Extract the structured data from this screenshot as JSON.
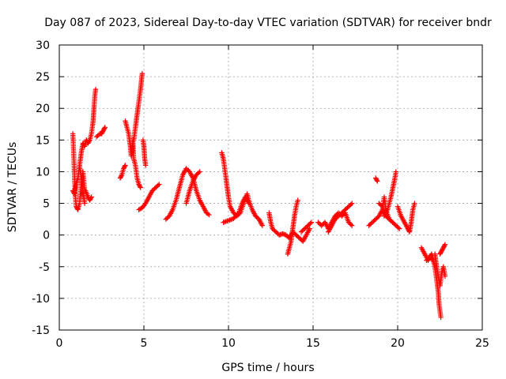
{
  "chart_data": {
    "type": "scatter",
    "title": "Day 087 of 2023, Sidereal Day-to-day VTEC variation (SDTVAR) for receiver bndr",
    "xlabel": "GPS time / hours",
    "ylabel": "SDTVAR / TECUs",
    "xlim": [
      0,
      25
    ],
    "ylim": [
      -15,
      30
    ],
    "xticks": [
      0,
      5,
      10,
      15,
      20,
      25
    ],
    "yticks": [
      -15,
      -10,
      -5,
      0,
      5,
      10,
      15,
      20,
      25,
      30
    ],
    "grid": true,
    "marker": "plus",
    "color": "#ff0000",
    "series": [
      {
        "name": "SDTVAR",
        "segments": [
          [
            [
              0.8,
              16
            ],
            [
              0.85,
              13
            ],
            [
              0.9,
              9
            ],
            [
              0.95,
              6
            ],
            [
              1.0,
              4.5
            ],
            [
              1.1,
              4
            ],
            [
              1.2,
              5
            ],
            [
              1.3,
              8
            ],
            [
              1.4,
              10
            ],
            [
              1.5,
              7
            ]
          ],
          [
            [
              0.8,
              7
            ],
            [
              0.9,
              6.5
            ],
            [
              1.0,
              8
            ],
            [
              1.1,
              9
            ],
            [
              1.2,
              11
            ],
            [
              1.3,
              9
            ],
            [
              1.4,
              7
            ],
            [
              1.5,
              5
            ],
            [
              1.45,
              6
            ]
          ],
          [
            [
              1.2,
              11
            ],
            [
              1.3,
              13
            ],
            [
              1.4,
              14.5
            ],
            [
              1.5,
              14
            ],
            [
              1.6,
              15
            ],
            [
              1.7,
              14.5
            ],
            [
              1.8,
              15
            ],
            [
              1.9,
              16
            ],
            [
              2.0,
              18
            ],
            [
              2.05,
              20
            ],
            [
              2.1,
              22
            ],
            [
              2.15,
              23
            ]
          ],
          [
            [
              1.55,
              7
            ],
            [
              1.7,
              6
            ],
            [
              1.8,
              5.5
            ],
            [
              1.9,
              6
            ]
          ],
          [
            [
              2.2,
              15.5
            ],
            [
              2.4,
              16
            ],
            [
              2.5,
              16
            ],
            [
              2.6,
              16.5
            ],
            [
              2.7,
              17
            ]
          ],
          [
            [
              3.6,
              9
            ],
            [
              3.7,
              9.5
            ],
            [
              3.8,
              10.5
            ],
            [
              3.9,
              11
            ]
          ],
          [
            [
              3.9,
              18
            ],
            [
              4.0,
              17
            ],
            [
              4.1,
              16
            ],
            [
              4.2,
              14
            ],
            [
              4.25,
              12.5
            ],
            [
              4.3,
              13
            ],
            [
              4.35,
              15
            ],
            [
              4.4,
              12
            ],
            [
              4.5,
              11
            ],
            [
              4.6,
              9
            ],
            [
              4.7,
              8
            ],
            [
              4.8,
              7.5
            ]
          ],
          [
            [
              4.4,
              15
            ],
            [
              4.5,
              17
            ],
            [
              4.6,
              19
            ],
            [
              4.7,
              21
            ],
            [
              4.8,
              23
            ],
            [
              4.9,
              25.5
            ]
          ],
          [
            [
              4.95,
              15
            ],
            [
              5.0,
              14
            ],
            [
              5.05,
              12
            ],
            [
              5.1,
              11
            ]
          ],
          [
            [
              4.7,
              4
            ],
            [
              4.9,
              4.3
            ],
            [
              5.1,
              5
            ],
            [
              5.3,
              6
            ],
            [
              5.5,
              7
            ],
            [
              5.7,
              7.5
            ],
            [
              5.9,
              8
            ]
          ],
          [
            [
              6.3,
              2.5
            ],
            [
              6.5,
              3
            ],
            [
              6.7,
              4
            ],
            [
              6.9,
              5.5
            ],
            [
              7.1,
              7.5
            ],
            [
              7.3,
              9.5
            ],
            [
              7.5,
              10.5
            ],
            [
              7.7,
              10
            ],
            [
              7.9,
              9
            ],
            [
              8.1,
              7
            ],
            [
              8.3,
              5.5
            ],
            [
              8.5,
              4.5
            ],
            [
              8.7,
              3.5
            ],
            [
              8.85,
              3.2
            ]
          ],
          [
            [
              7.5,
              5
            ],
            [
              7.7,
              7
            ],
            [
              7.9,
              8.5
            ],
            [
              8.1,
              9.5
            ],
            [
              8.3,
              10
            ]
          ],
          [
            [
              9.6,
              13
            ],
            [
              9.7,
              12
            ],
            [
              9.8,
              10
            ],
            [
              9.9,
              8
            ],
            [
              10.0,
              6
            ],
            [
              10.1,
              4.5
            ],
            [
              10.3,
              3.5
            ],
            [
              10.5,
              3
            ],
            [
              10.7,
              3.5
            ],
            [
              10.9,
              5
            ],
            [
              11.1,
              6.5
            ],
            [
              11.2,
              5.5
            ],
            [
              11.4,
              4
            ],
            [
              11.6,
              3
            ],
            [
              11.8,
              2.5
            ],
            [
              12.0,
              1.5
            ]
          ],
          [
            [
              9.7,
              2
            ],
            [
              10.0,
              2.3
            ],
            [
              10.3,
              2.6
            ],
            [
              10.6,
              3.5
            ],
            [
              10.8,
              5
            ],
            [
              11.0,
              6
            ],
            [
              11.2,
              5
            ]
          ],
          [
            [
              12.4,
              3.5
            ],
            [
              12.5,
              2
            ],
            [
              12.6,
              1
            ],
            [
              12.8,
              0.5
            ],
            [
              13.0,
              0
            ],
            [
              13.2,
              0.2
            ],
            [
              13.4,
              0
            ],
            [
              13.6,
              -0.5
            ],
            [
              13.8,
              0.5
            ],
            [
              14.0,
              0
            ],
            [
              14.2,
              -0.5
            ],
            [
              14.4,
              -1
            ],
            [
              14.6,
              0
            ],
            [
              14.8,
              1
            ]
          ],
          [
            [
              13.5,
              -3
            ],
            [
              13.6,
              -2
            ],
            [
              13.7,
              -1
            ],
            [
              13.8,
              1
            ],
            [
              13.9,
              3
            ],
            [
              14.0,
              4.5
            ],
            [
              14.1,
              5.5
            ]
          ],
          [
            [
              14.3,
              0.5
            ],
            [
              14.5,
              1
            ],
            [
              14.7,
              1.5
            ],
            [
              14.9,
              2
            ]
          ],
          [
            [
              15.3,
              2
            ],
            [
              15.5,
              1.5
            ],
            [
              15.7,
              2
            ],
            [
              15.9,
              1
            ],
            [
              16.1,
              2
            ],
            [
              16.3,
              3
            ],
            [
              16.5,
              3.5
            ],
            [
              16.7,
              3
            ],
            [
              16.9,
              3.5
            ],
            [
              17.1,
              2
            ],
            [
              17.3,
              1.5
            ]
          ],
          [
            [
              15.9,
              0.5
            ],
            [
              16.1,
              1.5
            ],
            [
              16.3,
              2.5
            ],
            [
              16.5,
              3
            ],
            [
              16.7,
              3.5
            ],
            [
              16.9,
              4
            ],
            [
              17.1,
              4.5
            ],
            [
              17.3,
              5
            ]
          ],
          [
            [
              18.3,
              1.5
            ],
            [
              18.5,
              2
            ],
            [
              18.7,
              2.5
            ],
            [
              18.9,
              3
            ],
            [
              19.1,
              4
            ],
            [
              19.2,
              6
            ],
            [
              19.3,
              4
            ],
            [
              19.5,
              2.5
            ],
            [
              19.7,
              2
            ],
            [
              19.9,
              1.5
            ],
            [
              20.1,
              1
            ]
          ],
          [
            [
              18.7,
              9
            ],
            [
              18.8,
              8.5
            ]
          ],
          [
            [
              19.2,
              3
            ],
            [
              19.4,
              4
            ],
            [
              19.6,
              6
            ],
            [
              19.8,
              8.5
            ],
            [
              19.9,
              10
            ]
          ],
          [
            [
              18.9,
              5
            ],
            [
              19.1,
              4.5
            ],
            [
              19.3,
              3
            ],
            [
              19.5,
              2.5
            ],
            [
              19.7,
              2
            ]
          ],
          [
            [
              20.0,
              4.5
            ],
            [
              20.2,
              3
            ],
            [
              20.4,
              2
            ],
            [
              20.6,
              1
            ],
            [
              20.7,
              0.5
            ],
            [
              20.8,
              2
            ],
            [
              20.9,
              4
            ],
            [
              21.0,
              5
            ]
          ],
          [
            [
              21.4,
              -2
            ],
            [
              21.6,
              -3
            ],
            [
              21.8,
              -4
            ],
            [
              22.0,
              -3
            ],
            [
              22.2,
              -5
            ],
            [
              22.3,
              -7
            ],
            [
              22.4,
              -9
            ],
            [
              22.45,
              -11
            ],
            [
              22.5,
              -12
            ],
            [
              22.55,
              -13
            ]
          ],
          [
            [
              22.2,
              -3
            ],
            [
              22.3,
              -5
            ],
            [
              22.5,
              -8
            ],
            [
              22.6,
              -6
            ],
            [
              22.7,
              -5
            ],
            [
              22.8,
              -6.5
            ]
          ],
          [
            [
              22.5,
              -3
            ],
            [
              22.6,
              -2.5
            ],
            [
              22.7,
              -2
            ],
            [
              22.8,
              -1.5
            ]
          ],
          [
            [
              21.7,
              -4
            ],
            [
              21.9,
              -3.5
            ],
            [
              22.1,
              -4
            ]
          ]
        ]
      }
    ]
  }
}
